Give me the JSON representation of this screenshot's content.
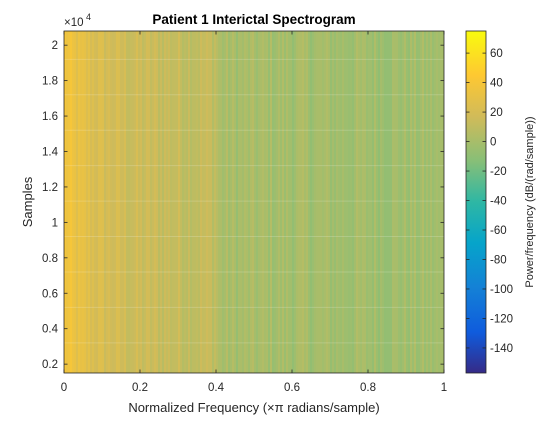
{
  "chart_data": {
    "type": "heatmap",
    "title": "Patient 1 Interictal Spectrogram",
    "xlabel": "Normalized Frequency (×π radians/sample)",
    "ylabel": "Samples",
    "y_exponent_label": "×10",
    "y_exponent_power": "4",
    "xlim": [
      0,
      1
    ],
    "ylim": [
      1500,
      20800
    ],
    "x_ticks": [
      0,
      0.2,
      0.4,
      0.6,
      0.8,
      1
    ],
    "x_tick_labels": [
      "0",
      "0.2",
      "0.4",
      "0.6",
      "0.8",
      "1"
    ],
    "y_ticks": [
      0.2,
      0.4,
      0.6,
      0.8,
      1,
      1.2,
      1.4,
      1.6,
      1.8,
      2
    ],
    "y_tick_labels": [
      "0.2",
      "0.4",
      "0.6",
      "0.8",
      "1",
      "1.2",
      "1.4",
      "1.6",
      "1.8",
      "2"
    ],
    "colorbar": {
      "label": "Power/frequency (dB/(rad/sample))",
      "clim": [
        -157,
        75
      ],
      "ticks": [
        60,
        40,
        20,
        0,
        -20,
        -40,
        -60,
        -80,
        -100,
        -120,
        -140
      ],
      "tick_labels": [
        "60",
        "40",
        "20",
        "0",
        "-20",
        "-40",
        "-60",
        "-80",
        "-100",
        "-120",
        "-140"
      ],
      "colormap": "parula"
    },
    "time_segment_boundaries_x1e4": [
      0.32,
      0.52,
      0.72,
      0.92,
      1.12,
      1.32,
      1.52,
      1.72,
      1.92
    ],
    "power_profile": [
      {
        "freq": 0.0,
        "db": 38
      },
      {
        "freq": 0.03,
        "db": 30
      },
      {
        "freq": 0.1,
        "db": 20
      },
      {
        "freq": 0.2,
        "db": 14
      },
      {
        "freq": 0.4,
        "db": 11
      },
      {
        "freq": 0.41,
        "db": 0
      },
      {
        "freq": 0.7,
        "db": -2
      },
      {
        "freq": 1.0,
        "db": -3
      }
    ],
    "grid": false,
    "legend": "none"
  }
}
